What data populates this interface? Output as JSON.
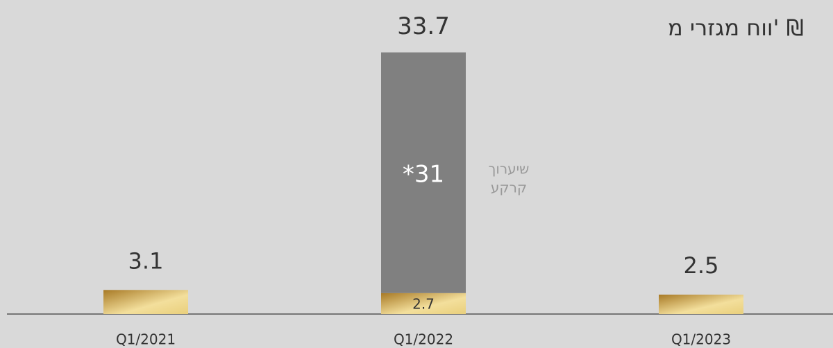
{
  "chart_data": {
    "type": "stacked_bar",
    "title": "ווח מגזרי מ' ₪",
    "categories": [
      "Q1/2021",
      "Q1/2022",
      "Q1/2023"
    ],
    "series": [
      {
        "color": "#c9a04a",
        "values": [
          3.1,
          2.7,
          2.5
        ]
      },
      {
        "color": "#808080",
        "values": [
          null,
          31,
          null
        ],
        "value_labels": [
          null,
          "*31",
          null
        ]
      }
    ],
    "totals": [
      null,
      33.7,
      null
    ],
    "annotation": [
      "שיערוך",
      "קרקע"
    ],
    "ylim": [
      0,
      40
    ]
  }
}
